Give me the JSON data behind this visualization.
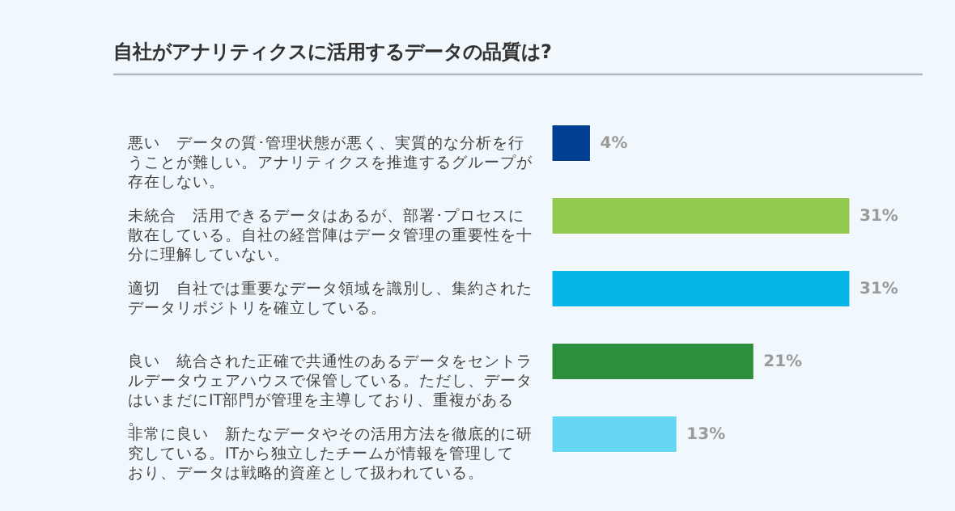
{
  "chart_data": {
    "type": "bar",
    "orientation": "horizontal",
    "title": "自社がアナリティクスに活用するデータの品質は?",
    "categories": [
      "悪い　データの質･管理状態が悪く、実質的な分析を行うことが難しい。アナリティクスを推進するグループが存在しない。",
      "未統合　活用できるデータはあるが、部署･プロセスに散在している。自社の経営陣はデータ管理の重要性を十分に理解していない。",
      "適切　自社では重要なデータ領域を識別し、集約されたデータリポジトリを確立している。",
      "良い　統合された正確で共通性のあるデータをセントラルデータウェアハウスで保管している。ただし、データはいまだにIT部門が管理を主導しており、重複がある。",
      "非常に良い　新たなデータやその活用方法を徹底的に研究している。ITから独立したチームが情報を管理しており、データは戦略的資産として扱われている。"
    ],
    "values": [
      4,
      31,
      31,
      21,
      13
    ],
    "value_labels": [
      "4%",
      "31%",
      "31%",
      "21%",
      "13%"
    ],
    "colors": [
      "#003f91",
      "#92c94f",
      "#07b5e8",
      "#2b8f3d",
      "#66d6f5"
    ]
  }
}
